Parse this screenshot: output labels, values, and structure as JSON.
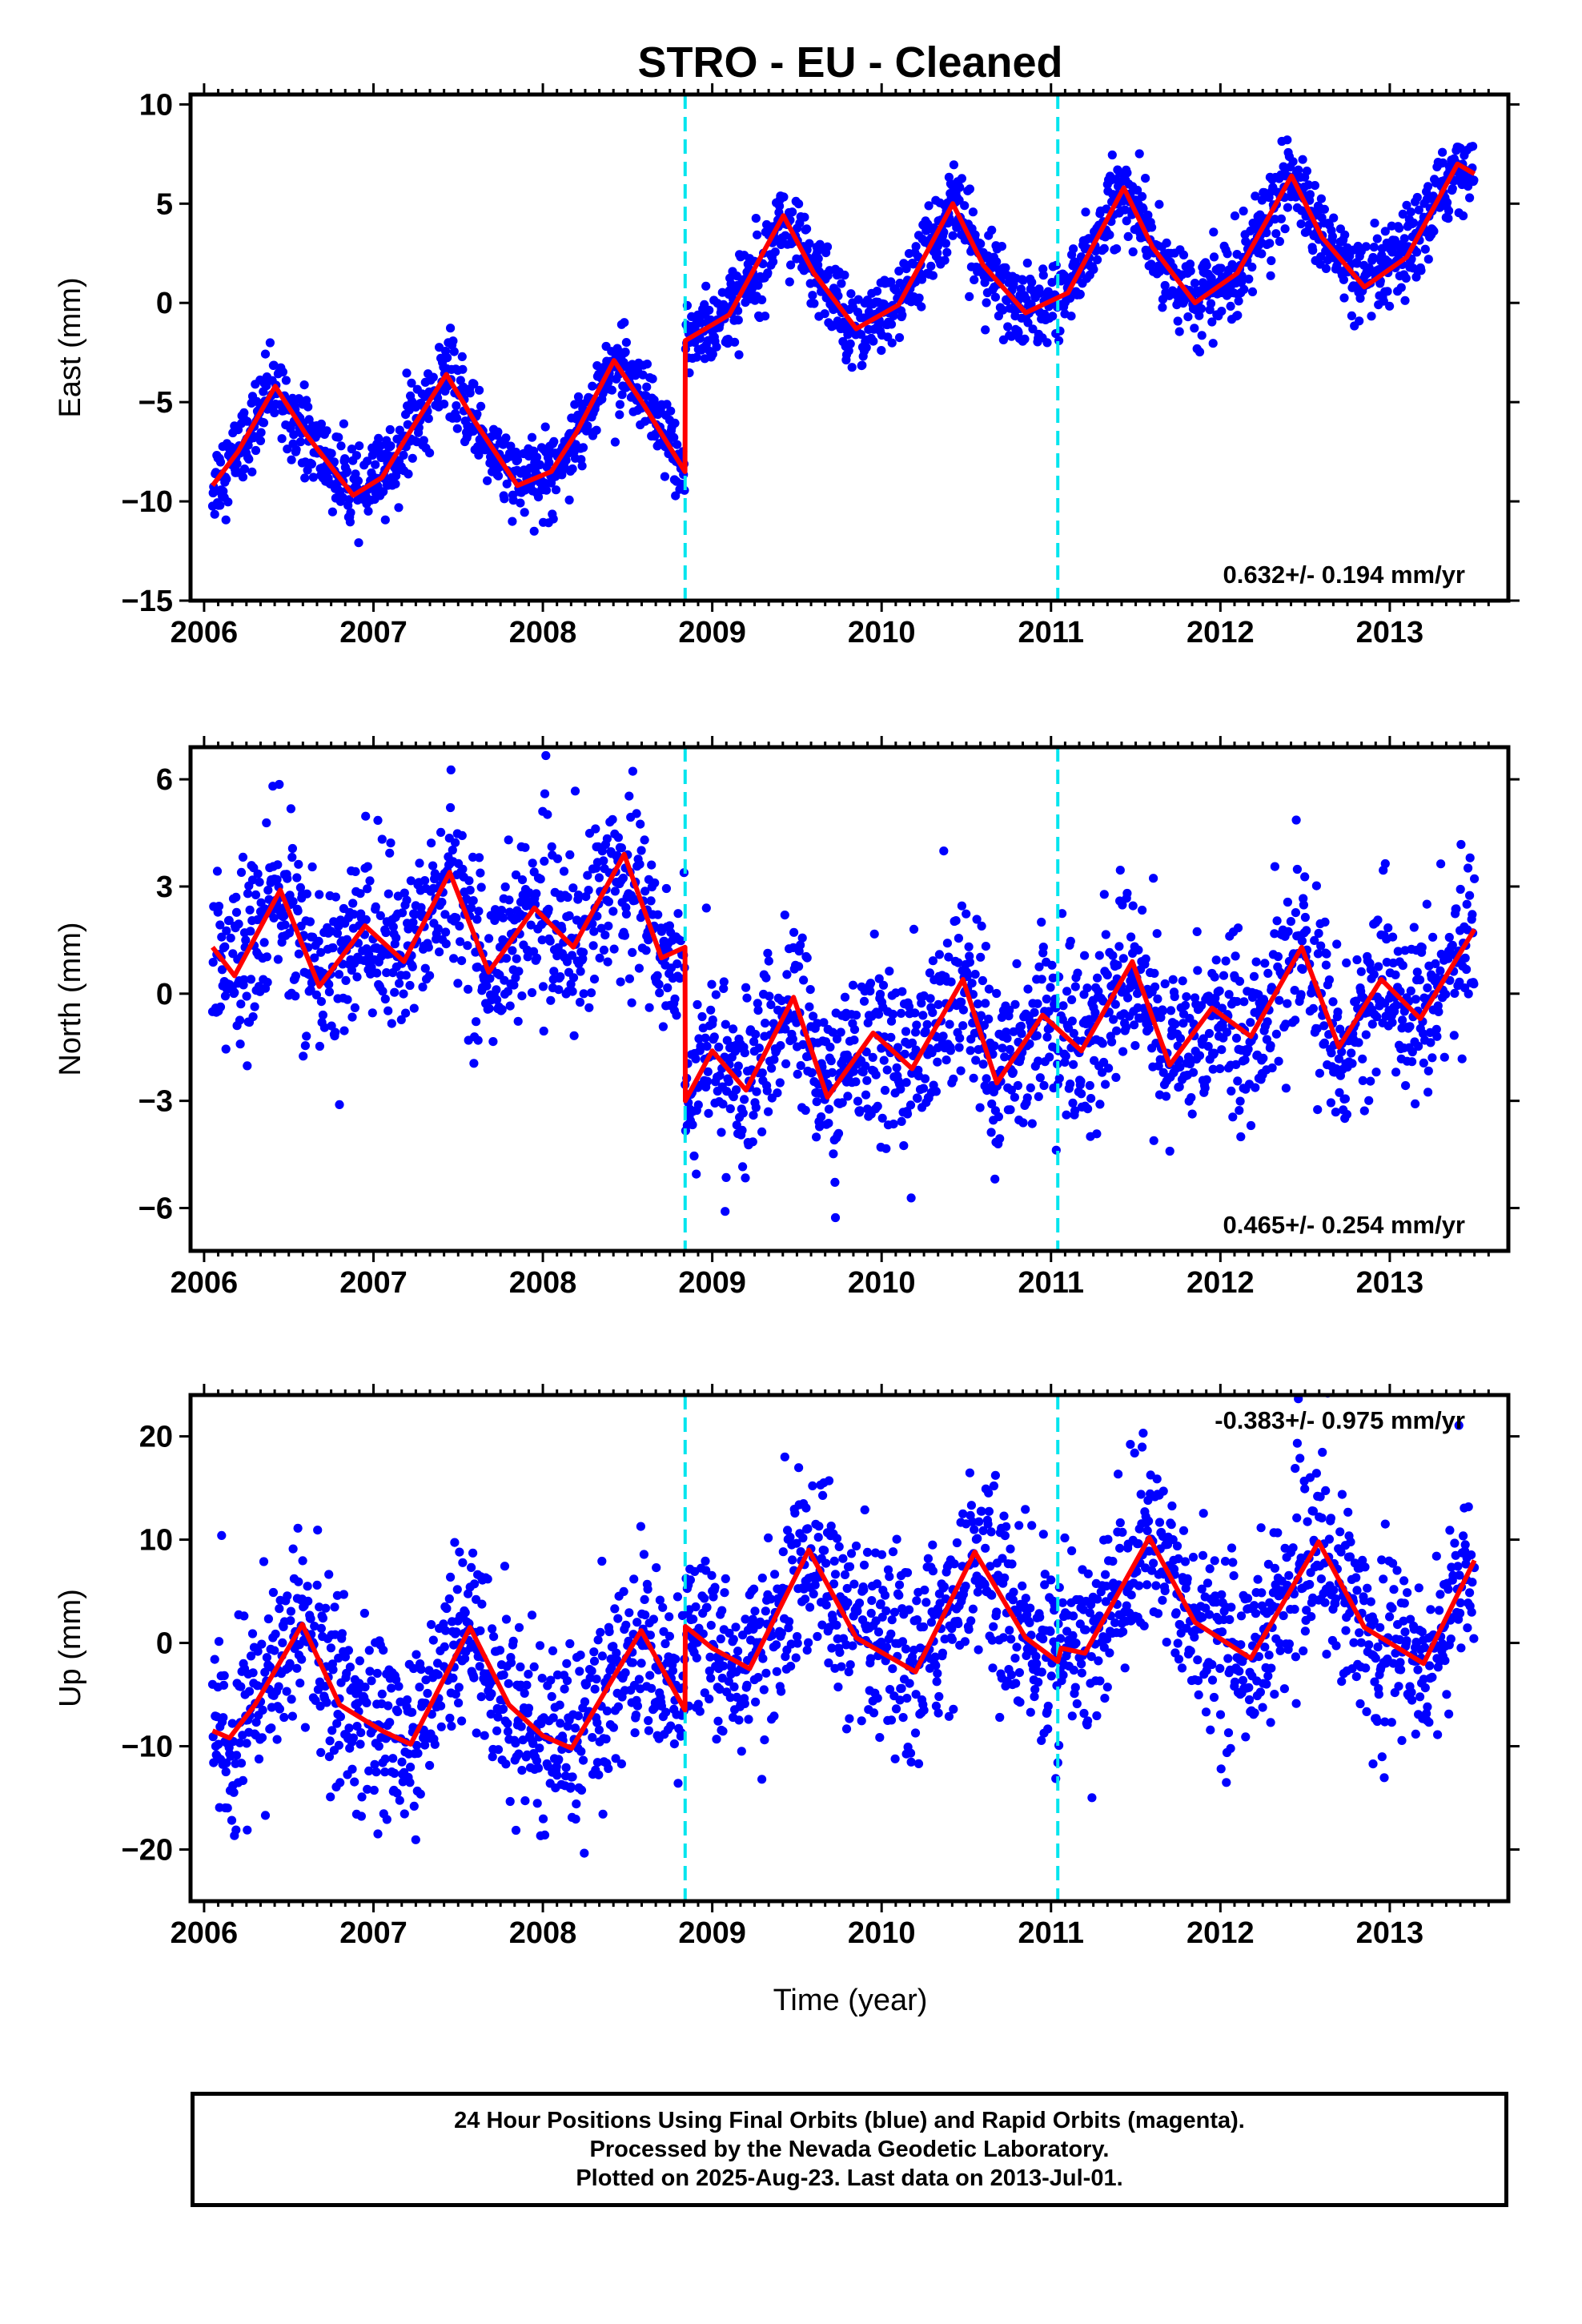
{
  "title": "STRO  - EU - Cleaned",
  "xlabel": "Time (year)",
  "caption": {
    "line1": "24 Hour Positions Using Final Orbits (blue) and Rapid Orbits (magenta).",
    "line2": "Processed by the Nevada Geodetic Laboratory.",
    "line3": "Plotted on 2025-Aug-23. Last data on 2013-Jul-01."
  },
  "colors": {
    "points": "#0000ff",
    "model": "#ff0000",
    "breaks": "#00e5ee",
    "axes": "#000000"
  },
  "chart_data": [
    {
      "type": "scatter",
      "component": "east",
      "ylabel": "East (mm)",
      "rate_label": "0.632+/- 0.194 mm/yr",
      "rate_position": "bottom-right",
      "xlim": [
        2005.92,
        2013.7
      ],
      "ylim": [
        -15,
        10.5
      ],
      "xticks": [
        "2006",
        "2007",
        "2008",
        "2009",
        "2010",
        "2011",
        "2012",
        "2013"
      ],
      "yticks": [
        "10",
        "5",
        "0",
        "−5",
        "−10",
        "−15"
      ],
      "ytick_values": [
        10,
        5,
        0,
        -5,
        -10,
        -15
      ],
      "break_epochs": [
        2008.84,
        2011.04
      ],
      "data_span": [
        2006.05,
        2013.5
      ],
      "scatter_sigma": 1.0,
      "model_fit": [
        [
          2006.05,
          -9.2
        ],
        [
          2006.2,
          -7.5
        ],
        [
          2006.42,
          -4.2
        ],
        [
          2006.6,
          -6.6
        ],
        [
          2006.88,
          -9.7
        ],
        [
          2007.05,
          -8.8
        ],
        [
          2007.2,
          -6.7
        ],
        [
          2007.43,
          -3.6
        ],
        [
          2007.6,
          -6.0
        ],
        [
          2007.85,
          -9.2
        ],
        [
          2008.05,
          -8.5
        ],
        [
          2008.2,
          -6.5
        ],
        [
          2008.42,
          -2.9
        ],
        [
          2008.6,
          -5.2
        ],
        [
          2008.839,
          -8.5
        ],
        [
          2008.841,
          -1.9
        ],
        [
          2009.1,
          -0.6
        ],
        [
          2009.42,
          4.4
        ],
        [
          2009.6,
          1.5
        ],
        [
          2009.85,
          -1.3
        ],
        [
          2010.1,
          -0.1
        ],
        [
          2010.42,
          5.0
        ],
        [
          2010.6,
          1.9
        ],
        [
          2010.85,
          -0.5
        ],
        [
          2011.1,
          0.5
        ],
        [
          2011.43,
          5.8
        ],
        [
          2011.6,
          2.8
        ],
        [
          2011.85,
          0.0
        ],
        [
          2012.1,
          1.5
        ],
        [
          2012.42,
          6.4
        ],
        [
          2012.6,
          3.3
        ],
        [
          2012.85,
          0.8
        ],
        [
          2013.1,
          2.3
        ],
        [
          2013.4,
          7.0
        ],
        [
          2013.5,
          6.5
        ]
      ]
    },
    {
      "type": "scatter",
      "component": "north",
      "ylabel": "North (mm)",
      "rate_label": "0.465+/- 0.254 mm/yr",
      "rate_position": "bottom-right",
      "xlim": [
        2005.92,
        2013.7
      ],
      "ylim": [
        -7.2,
        6.9
      ],
      "xticks": [
        "2006",
        "2007",
        "2008",
        "2009",
        "2010",
        "2011",
        "2012",
        "2013"
      ],
      "yticks": [
        "6",
        "3",
        "0",
        "−3",
        "−6"
      ],
      "ytick_values": [
        6,
        3,
        0,
        -3,
        -6
      ],
      "break_epochs": [
        2008.84,
        2011.04
      ],
      "data_span": [
        2006.05,
        2013.5
      ],
      "scatter_sigma": 1.2,
      "model_fit": [
        [
          2006.05,
          1.3
        ],
        [
          2006.18,
          0.5
        ],
        [
          2006.45,
          2.9
        ],
        [
          2006.68,
          0.2
        ],
        [
          2006.95,
          1.9
        ],
        [
          2007.18,
          0.9
        ],
        [
          2007.45,
          3.4
        ],
        [
          2007.68,
          0.6
        ],
        [
          2007.95,
          2.4
        ],
        [
          2008.18,
          1.3
        ],
        [
          2008.48,
          3.9
        ],
        [
          2008.7,
          1.0
        ],
        [
          2008.839,
          1.3
        ],
        [
          2008.841,
          -3.0
        ],
        [
          2009.0,
          -1.6
        ],
        [
          2009.2,
          -2.7
        ],
        [
          2009.48,
          -0.1
        ],
        [
          2009.68,
          -2.9
        ],
        [
          2009.95,
          -1.1
        ],
        [
          2010.18,
          -2.1
        ],
        [
          2010.48,
          0.4
        ],
        [
          2010.68,
          -2.5
        ],
        [
          2010.95,
          -0.6
        ],
        [
          2011.18,
          -1.6
        ],
        [
          2011.48,
          0.9
        ],
        [
          2011.7,
          -2.0
        ],
        [
          2011.95,
          -0.4
        ],
        [
          2012.18,
          -1.2
        ],
        [
          2012.48,
          1.3
        ],
        [
          2012.7,
          -1.5
        ],
        [
          2012.95,
          0.4
        ],
        [
          2013.18,
          -0.7
        ],
        [
          2013.5,
          1.8
        ]
      ]
    },
    {
      "type": "scatter",
      "component": "up",
      "ylabel": "Up (mm)",
      "rate_label": "-0.383+/- 0.975 mm/yr",
      "rate_position": "top-right",
      "xlim": [
        2005.92,
        2013.7
      ],
      "ylim": [
        -25,
        24
      ],
      "xticks": [
        "2006",
        "2007",
        "2008",
        "2009",
        "2010",
        "2011",
        "2012",
        "2013"
      ],
      "yticks": [
        "20",
        "10",
        "0",
        "−10",
        "−20"
      ],
      "ytick_values": [
        20,
        10,
        0,
        -10,
        -20
      ],
      "break_epochs": [
        2008.84,
        2011.04
      ],
      "data_span": [
        2006.05,
        2013.5
      ],
      "scatter_sigma": 4.5,
      "model_fit": [
        [
          2006.05,
          -8.5
        ],
        [
          2006.15,
          -9.2
        ],
        [
          2006.3,
          -6.0
        ],
        [
          2006.58,
          1.8
        ],
        [
          2006.8,
          -6.0
        ],
        [
          2007.05,
          -8.5
        ],
        [
          2007.22,
          -9.8
        ],
        [
          2007.57,
          1.5
        ],
        [
          2007.8,
          -6.0
        ],
        [
          2008.0,
          -9.0
        ],
        [
          2008.17,
          -10.2
        ],
        [
          2008.58,
          1.2
        ],
        [
          2008.839,
          -6.5
        ],
        [
          2008.841,
          1.6
        ],
        [
          2009.0,
          -0.5
        ],
        [
          2009.22,
          -2.5
        ],
        [
          2009.57,
          9.0
        ],
        [
          2009.85,
          0.5
        ],
        [
          2010.2,
          -2.8
        ],
        [
          2010.55,
          8.8
        ],
        [
          2010.85,
          0.5
        ],
        [
          2011.04,
          -1.8
        ],
        [
          2011.06,
          -0.5
        ],
        [
          2011.2,
          -1.0
        ],
        [
          2011.58,
          10.2
        ],
        [
          2011.85,
          2.0
        ],
        [
          2012.18,
          -1.5
        ],
        [
          2012.58,
          9.8
        ],
        [
          2012.85,
          1.5
        ],
        [
          2013.2,
          -2.0
        ],
        [
          2013.5,
          8.0
        ]
      ]
    }
  ]
}
